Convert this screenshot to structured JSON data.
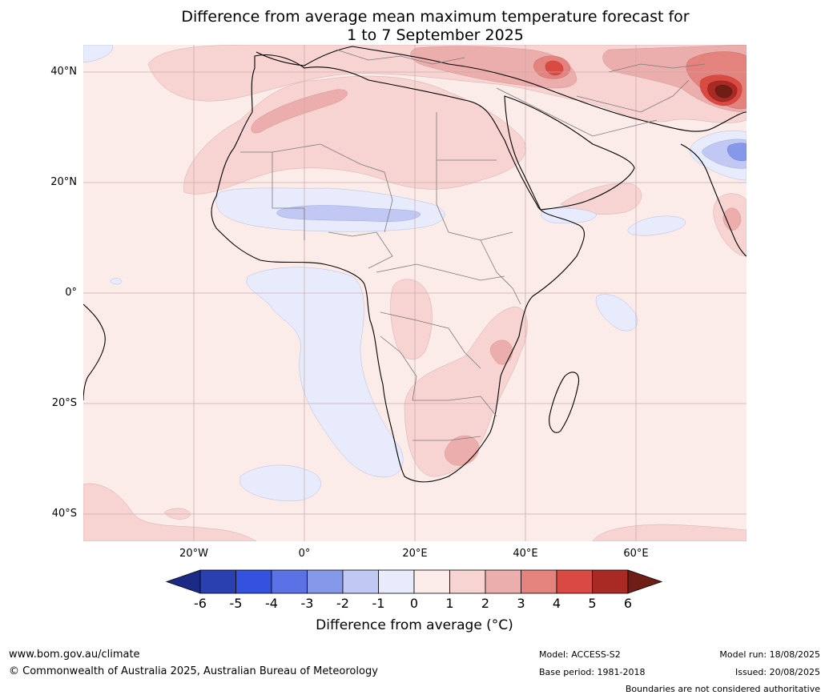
{
  "title": {
    "line1": "Difference from average mean maximum temperature forecast for",
    "line2": "1 to 7 September 2025"
  },
  "map": {
    "region": "Africa",
    "lat_labels": [
      "40°N",
      "20°N",
      "0°",
      "20°S",
      "40°S"
    ],
    "lon_labels": [
      "20°W",
      "0°",
      "20°E",
      "40°E",
      "60°E"
    ],
    "background_anomaly": "0 to 1",
    "colors": {
      "ocean_base": "#fbebe9",
      "below_-2_-1": "#c1c8f3",
      "below_-1_0": "#e7ebfc",
      "above_1_2": "#f7d4d2",
      "above_2_3": "#ecaeac",
      "above_3_4": "#e4827e",
      "above_4_5": "#db4a42",
      "above_5_6": "#a92a24",
      "above_6": "#6e1e16"
    }
  },
  "colorbar": {
    "ticks": [
      "-6",
      "-5",
      "-4",
      "-3",
      "-2",
      "-1",
      "0",
      "1",
      "2",
      "3",
      "4",
      "5",
      "6"
    ],
    "colors": [
      "#1b2a87",
      "#2a3fb0",
      "#3452df",
      "#5a72e6",
      "#8598ea",
      "#c1c8f3",
      "#e7ebfc",
      "#fbebe9",
      "#f7d4d2",
      "#ecaeac",
      "#e4827e",
      "#db4a42",
      "#a92a24",
      "#6e1e16"
    ],
    "label": "Difference from average ($^\\circ$C)",
    "label_display": "Difference from average (°C)"
  },
  "footer": {
    "website": "www.bom.gov.au/climate",
    "copyright": "© Commonwealth of Australia 2025, Australian Bureau of Meteorology",
    "model": "Model: ACCESS-S2",
    "base_period": "Base period: 1981-2018",
    "model_run": "Model run: 18/08/2025",
    "issued": "Issued: 20/08/2025",
    "disclaimer": "Boundaries are not considered authoritative"
  }
}
